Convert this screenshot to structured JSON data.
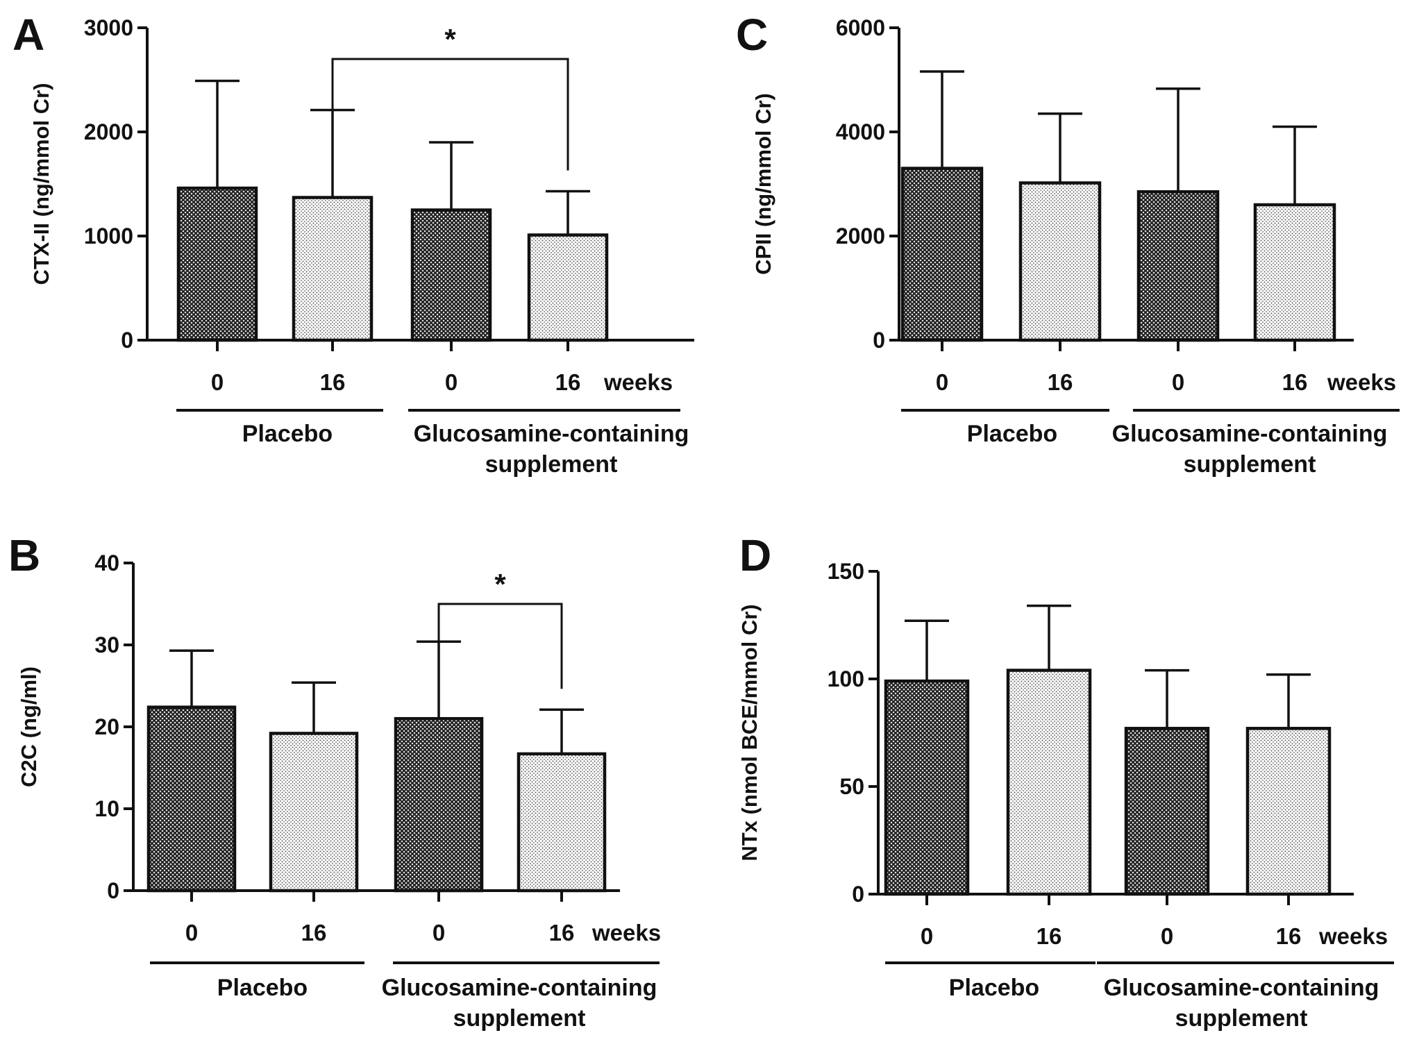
{
  "colors": {
    "ink": "#111111",
    "baseline_bar_pattern": "#3a3a3a",
    "week16_bar_pattern": "#9a9a9a",
    "background": "#ffffff"
  },
  "chart_data": [
    {
      "panel": "A",
      "type": "bar",
      "ylabel": "CTX-II (ng/mmol Cr)",
      "ylim": [
        0,
        3000
      ],
      "yticks": [
        "0",
        "1000",
        "2000",
        "3000"
      ],
      "categories": [
        "0",
        "16",
        "0",
        "16"
      ],
      "x_unit_label": "weeks",
      "groups": [
        {
          "name": "Placebo",
          "lines": [
            "Placebo"
          ],
          "bars": [
            0,
            1
          ]
        },
        {
          "name": "Glucosamine-containing supplement",
          "lines": [
            "Glucosamine-containing",
            "supplement"
          ],
          "bars": [
            2,
            3
          ]
        }
      ],
      "values": [
        1460,
        1370,
        1250,
        1010
      ],
      "error_upper": [
        2490,
        2210,
        1900,
        1430
      ],
      "bar_fill": [
        "dark",
        "light",
        "dark",
        "light"
      ],
      "significance": [
        {
          "from": 1,
          "to": 3,
          "label": "*",
          "level": 2700
        }
      ],
      "grid": false
    },
    {
      "panel": "B",
      "type": "bar",
      "ylabel": "C2C (ng/ml)",
      "ylim": [
        0,
        40
      ],
      "yticks": [
        "0",
        "10",
        "20",
        "30",
        "40"
      ],
      "categories": [
        "0",
        "16",
        "0",
        "16"
      ],
      "x_unit_label": "weeks",
      "groups": [
        {
          "name": "Placebo",
          "lines": [
            "Placebo"
          ],
          "bars": [
            0,
            1
          ]
        },
        {
          "name": "Glucosamine-containing supplement",
          "lines": [
            "Glucosamine-containing",
            "supplement"
          ],
          "bars": [
            2,
            3
          ]
        }
      ],
      "values": [
        22.4,
        19.2,
        21.0,
        16.7
      ],
      "error_upper": [
        29.3,
        25.4,
        30.4,
        22.1
      ],
      "bar_fill": [
        "dark",
        "light",
        "dark",
        "light"
      ],
      "significance": [
        {
          "from": 2,
          "to": 3,
          "label": "*",
          "level": 35
        }
      ],
      "grid": false
    },
    {
      "panel": "C",
      "type": "bar",
      "ylabel": "CPII (ng/mmol Cr)",
      "ylim": [
        0,
        6000
      ],
      "yticks": [
        "0",
        "2000",
        "4000",
        "6000"
      ],
      "categories": [
        "0",
        "16",
        "0",
        "16"
      ],
      "x_unit_label": "weeks",
      "groups": [
        {
          "name": "Placebo",
          "lines": [
            "Placebo"
          ],
          "bars": [
            0,
            1
          ]
        },
        {
          "name": "Glucosamine-containing supplement",
          "lines": [
            "Glucosamine-containing",
            "supplement"
          ],
          "bars": [
            2,
            3
          ]
        }
      ],
      "values": [
        3300,
        3020,
        2850,
        2600
      ],
      "error_upper": [
        5160,
        4350,
        4830,
        4100
      ],
      "bar_fill": [
        "dark",
        "light",
        "dark",
        "light"
      ],
      "significance": [],
      "grid": false
    },
    {
      "panel": "D",
      "type": "bar",
      "ylabel": "NTx (nmol BCE/mmol Cr)",
      "ylim": [
        0,
        150
      ],
      "yticks": [
        "0",
        "50",
        "100",
        "150"
      ],
      "categories": [
        "0",
        "16",
        "0",
        "16"
      ],
      "x_unit_label": "weeks",
      "groups": [
        {
          "name": "Placebo",
          "lines": [
            "Placebo"
          ],
          "bars": [
            0,
            1
          ]
        },
        {
          "name": "Glucosamine-containing supplement",
          "lines": [
            "Glucosamine-containing",
            "supplement"
          ],
          "bars": [
            2,
            3
          ]
        }
      ],
      "values": [
        99,
        104,
        77,
        77
      ],
      "error_upper": [
        127,
        134,
        104,
        102
      ],
      "bar_fill": [
        "dark",
        "light",
        "dark",
        "light"
      ],
      "significance": [],
      "grid": false
    }
  ]
}
